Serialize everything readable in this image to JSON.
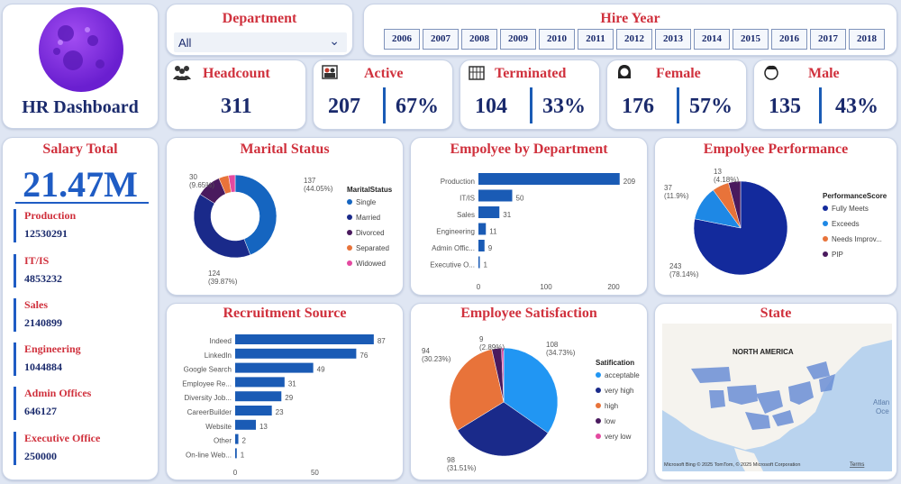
{
  "dashboard": {
    "title": "HR Dashboard",
    "logo": "moon-logo-icon"
  },
  "department_slicer": {
    "label": "Department",
    "value": "All"
  },
  "hire_year": {
    "label": "Hire Year",
    "years": [
      "2006",
      "2007",
      "2008",
      "2009",
      "2010",
      "2011",
      "2012",
      "2013",
      "2014",
      "2015",
      "2016",
      "2017",
      "2018"
    ]
  },
  "kpis": {
    "headcount": {
      "label": "Headcount",
      "value": "311",
      "icon": "people-icon"
    },
    "active": {
      "label": "Active",
      "value": "207",
      "pct": "67%",
      "icon": "workers-icon"
    },
    "terminated": {
      "label": "Terminated",
      "value": "104",
      "pct": "33%",
      "icon": "building-icon"
    },
    "female": {
      "label": "Female",
      "value": "176",
      "pct": "57%",
      "icon": "female-icon"
    },
    "male": {
      "label": "Male",
      "value": "135",
      "pct": "43%",
      "icon": "male-icon"
    }
  },
  "salary": {
    "title": "Salary Total",
    "total": "21.47M",
    "items": [
      {
        "name": "Production",
        "value": "12530291"
      },
      {
        "name": "IT/IS",
        "value": "4853232"
      },
      {
        "name": "Sales",
        "value": "2140899"
      },
      {
        "name": "Engineering",
        "value": "1044884"
      },
      {
        "name": "Admin Offices",
        "value": "646127"
      },
      {
        "name": "Executive Office",
        "value": "250000"
      }
    ]
  },
  "colors": {
    "accent": "#1f5cc4",
    "title_red": "#d0313d",
    "navy": "#1a2a6c",
    "single": "#1565c0",
    "married": "#1a2a8a",
    "divorced": "#4a1a5e",
    "separated": "#e8733a",
    "widowed": "#e44aa0",
    "fully_meets": "#132a9c",
    "exceeds": "#1e88e5",
    "needs_improvement": "#e8733a",
    "pip": "#4a1a5e",
    "sat_acceptable": "#2196f3",
    "sat_very_high": "#1a2a8a",
    "sat_high": "#e8733a",
    "sat_low": "#4a1a5e",
    "sat_very_low": "#e44aa0",
    "bar": "#1a5bb5",
    "map_land": "#f5f3ee",
    "map_water": "#b9d3ee",
    "map_state": "#6b8fd6"
  },
  "chart_data": [
    {
      "type": "pie",
      "id": "marital",
      "title": "Marital Status",
      "legend_title": "MaritalStatus",
      "donut": true,
      "categories": [
        "Single",
        "Married",
        "Divorced",
        "Separated",
        "Widowed"
      ],
      "values": [
        137,
        124,
        30,
        12,
        8
      ],
      "labels": [
        {
          "cat": "Single",
          "count": "137",
          "pct": "(44.05%)"
        },
        {
          "cat": "Married",
          "count": "124",
          "pct": "(39.87%)"
        },
        {
          "cat": "Divorced",
          "count": "30",
          "pct": "(9.65%)"
        }
      ]
    },
    {
      "type": "bar",
      "id": "dept",
      "title": "Empolyee by Department",
      "orientation": "horizontal",
      "categories": [
        "Production",
        "IT/IS",
        "Sales",
        "Engineering",
        "Admin Offic...",
        "Executive O..."
      ],
      "values": [
        209,
        50,
        31,
        11,
        9,
        1
      ],
      "xlim": [
        0,
        220
      ],
      "xticks": [
        "0",
        "100",
        "200"
      ]
    },
    {
      "type": "pie",
      "id": "performance",
      "title": "Empolyee Performance",
      "legend_title": "PerformanceScore",
      "categories": [
        "Fully Meets",
        "Exceeds",
        "Needs Improv...",
        "PIP"
      ],
      "values": [
        243,
        37,
        18,
        13
      ],
      "labels": [
        {
          "cat": "Fully Meets",
          "count": "243",
          "pct": "(78.14%)"
        },
        {
          "cat": "Exceeds",
          "count": "37",
          "pct": "(11.9%)"
        },
        {
          "cat": "PIP",
          "count": "13",
          "pct": "(4.18%)"
        }
      ]
    },
    {
      "type": "bar",
      "id": "recruit",
      "title": "Recruitment Source",
      "orientation": "horizontal",
      "categories": [
        "Indeed",
        "LinkedIn",
        "Google Search",
        "Employee Re...",
        "Diversity Job...",
        "CareerBuilder",
        "Website",
        "Other",
        "On-line Web..."
      ],
      "values": [
        87,
        76,
        49,
        31,
        29,
        23,
        13,
        2,
        1
      ],
      "xlim": [
        0,
        95
      ],
      "xticks": [
        "0",
        "50"
      ]
    },
    {
      "type": "pie",
      "id": "satisfaction",
      "title": "Employee Satisfaction",
      "legend_title": "Satification",
      "categories": [
        "acceptable",
        "very high",
        "high",
        "low",
        "very low"
      ],
      "values": [
        108,
        98,
        94,
        9,
        2
      ],
      "labels": [
        {
          "cat": "acceptable",
          "count": "108",
          "pct": "(34.73%)"
        },
        {
          "cat": "very high",
          "count": "98",
          "pct": "(31.51%)"
        },
        {
          "cat": "high",
          "count": "94",
          "pct": "(30.23%)"
        },
        {
          "cat": "low",
          "count": "9",
          "pct": "(2.89%)"
        }
      ]
    }
  ],
  "state_map": {
    "title": "State",
    "region_label": "NORTH AMERICA",
    "ocean_label": "Atlan\nOce",
    "attribution": "Microsoft Bing   © 2025 TomTom, © 2025 Microsoft Corporation",
    "terms": "Terms"
  }
}
